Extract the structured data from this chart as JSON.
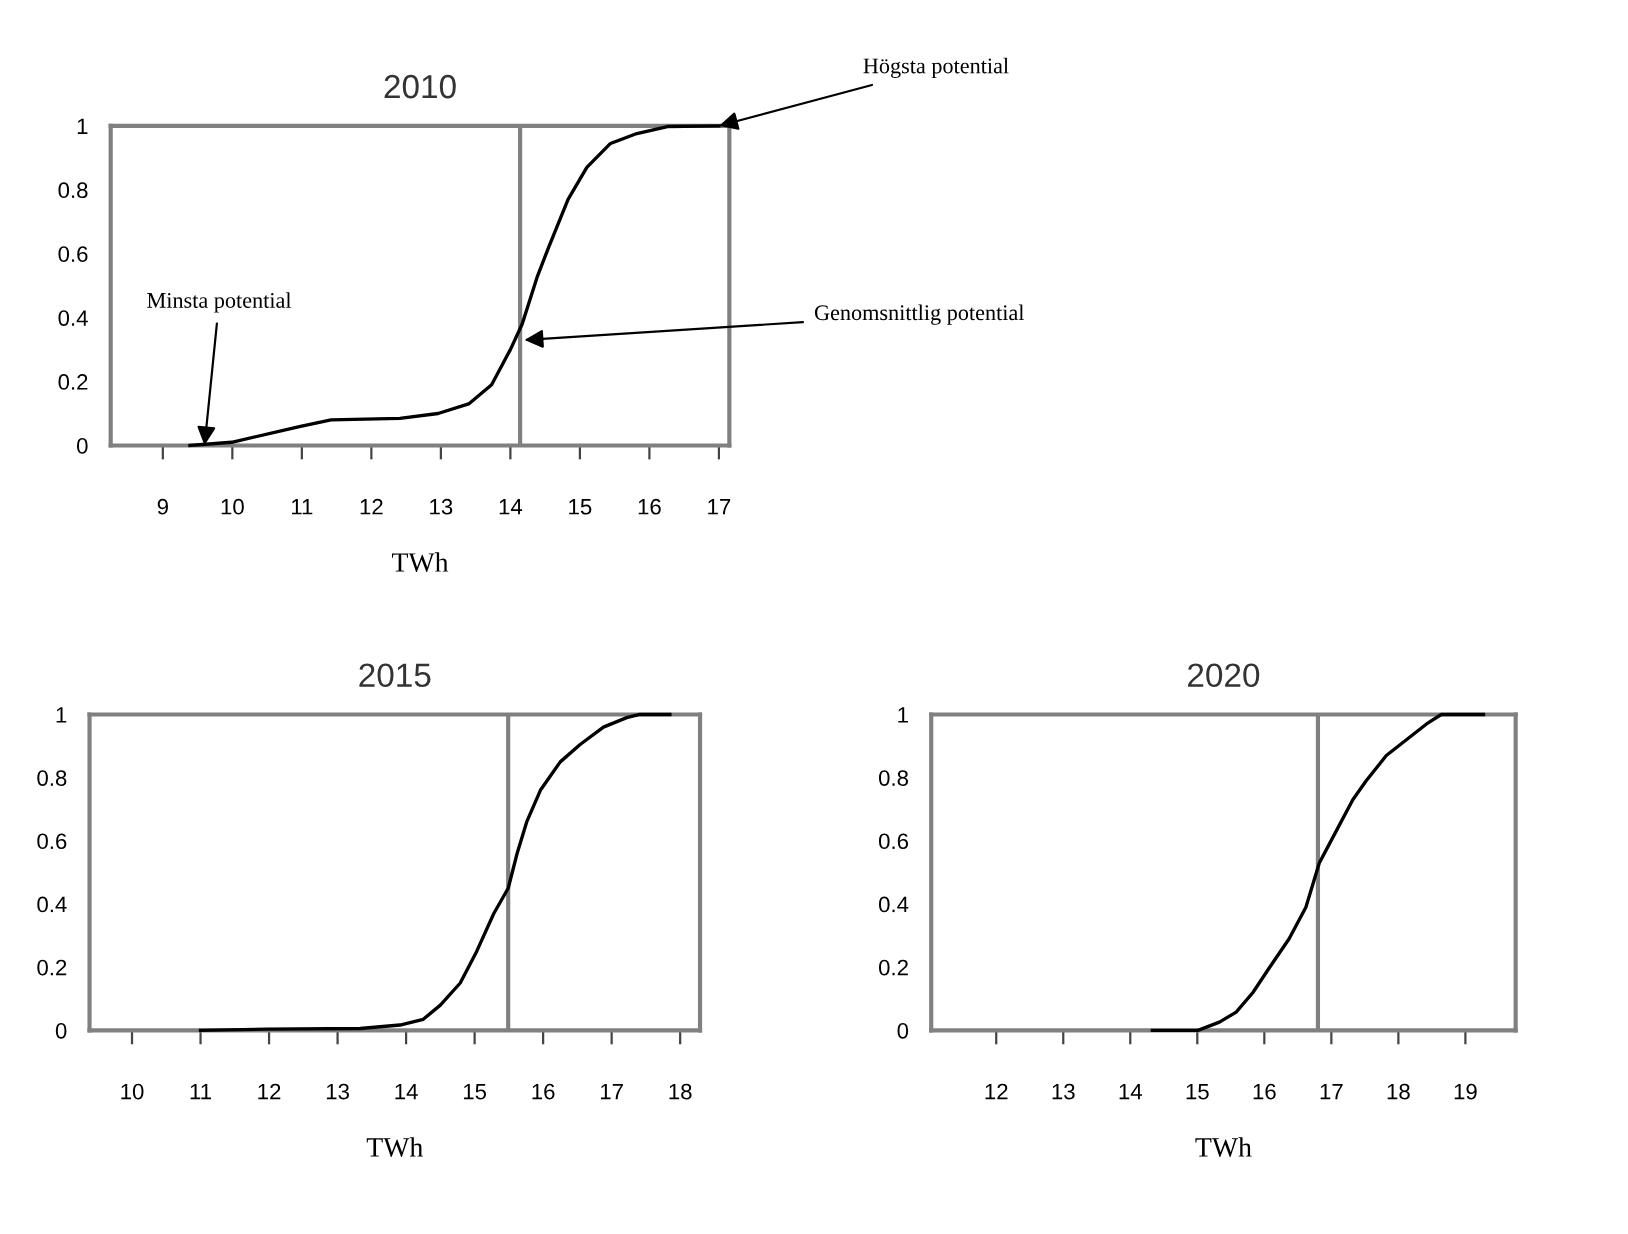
{
  "chart_data": [
    {
      "type": "line",
      "title": "2010",
      "xlabel": "TWh",
      "xlim": [
        8.25,
        17.15
      ],
      "xticks": [
        9,
        10,
        11,
        12,
        13,
        14,
        15,
        16,
        17
      ],
      "ylim": [
        0,
        1
      ],
      "yticks": [
        0,
        0.2,
        0.4,
        0.6,
        0.8,
        1
      ],
      "grid": false,
      "legend": false,
      "marker": "none",
      "line_style": "solid",
      "series": [
        {
          "color": "#000000",
          "x": [
            9.39,
            9.99,
            10.98,
            11.42,
            12.41,
            12.96,
            13.4,
            13.73,
            14.0,
            14.17,
            14.39,
            14.55,
            14.83,
            15.1,
            15.44,
            15.82,
            16.26,
            17.0
          ],
          "values": [
            0,
            0.01,
            0.06,
            0.08,
            0.085,
            0.1,
            0.13,
            0.19,
            0.3,
            0.38,
            0.53,
            0.62,
            0.77,
            0.87,
            0.945,
            0.976,
            0.998,
            1.0
          ]
        }
      ],
      "ref_lines": [
        {
          "axis": "x",
          "value": 14.14,
          "color": "#808080"
        }
      ],
      "annotations": [
        {
          "text": "Högsta potential",
          "x": 17.0,
          "y": 1.0
        },
        {
          "text": "Genomsnittlig potential",
          "x": 14.2,
          "y": 0.33
        },
        {
          "text": "Minsta potential",
          "x": 9.6,
          "y": 0.0
        }
      ]
    },
    {
      "type": "line",
      "title": "2015",
      "xlabel": "TWh",
      "xlim": [
        9.38,
        18.29
      ],
      "xticks": [
        10,
        11,
        12,
        13,
        14,
        15,
        16,
        17,
        18
      ],
      "ylim": [
        0,
        1
      ],
      "yticks": [
        0,
        0.2,
        0.4,
        0.6,
        0.8,
        1
      ],
      "grid": false,
      "legend": false,
      "marker": "none",
      "line_style": "solid",
      "series": [
        {
          "color": "#000000",
          "x": [
            11.0,
            11.97,
            13.33,
            13.91,
            14.25,
            14.5,
            14.79,
            15.03,
            15.28,
            15.49,
            15.62,
            15.76,
            15.96,
            16.25,
            16.54,
            16.88,
            17.22,
            17.41,
            17.85
          ],
          "values": [
            0,
            0.004,
            0.006,
            0.017,
            0.035,
            0.08,
            0.15,
            0.25,
            0.37,
            0.45,
            0.56,
            0.66,
            0.76,
            0.85,
            0.905,
            0.96,
            0.99,
            1.0,
            1.0
          ]
        }
      ],
      "ref_lines": [
        {
          "axis": "x",
          "value": 15.49,
          "color": "#808080"
        }
      ]
    },
    {
      "type": "line",
      "title": "2020",
      "xlabel": "TWh",
      "xlim": [
        11.03,
        19.75
      ],
      "xticks": [
        12,
        13,
        14,
        15,
        16,
        17,
        18,
        19
      ],
      "ylim": [
        0,
        1
      ],
      "yticks": [
        0,
        0.2,
        0.4,
        0.6,
        0.8,
        1
      ],
      "grid": false,
      "legend": false,
      "marker": "none",
      "line_style": "solid",
      "series": [
        {
          "color": "#000000",
          "x": [
            14.33,
            15.01,
            15.33,
            15.58,
            15.83,
            16.08,
            16.37,
            16.62,
            16.82,
            17.07,
            17.32,
            17.52,
            17.82,
            18.12,
            18.42,
            18.64,
            19.27
          ],
          "values": [
            0,
            0,
            0.026,
            0.058,
            0.12,
            0.2,
            0.29,
            0.39,
            0.53,
            0.63,
            0.73,
            0.79,
            0.87,
            0.92,
            0.97,
            1.0,
            1.0
          ]
        }
      ],
      "ref_lines": [
        {
          "axis": "x",
          "value": 16.8,
          "color": "#808080"
        }
      ]
    }
  ]
}
